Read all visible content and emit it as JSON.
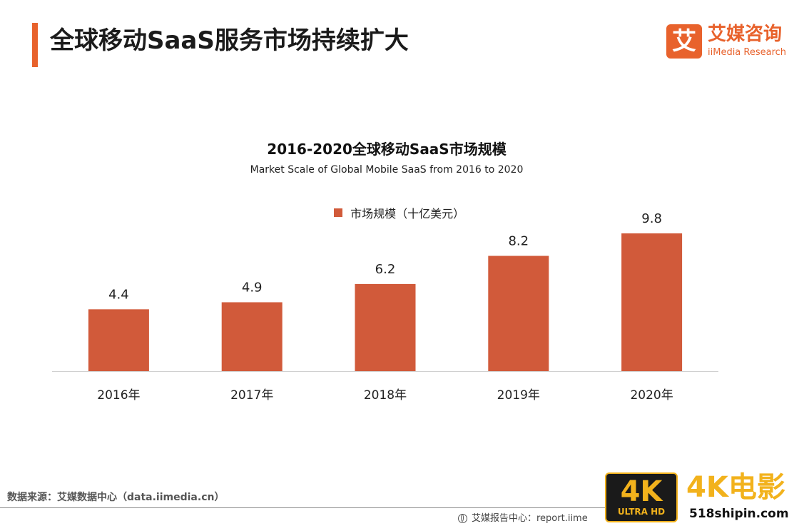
{
  "header": {
    "title": "全球移动SaaS服务市场持续扩大",
    "accent_color": "#e8622c"
  },
  "logo": {
    "mark": "艾",
    "name": "艾媒咨询",
    "sub": "iiMedia Research"
  },
  "chart_data": {
    "type": "bar",
    "title": "2016-2020全球移动SaaS市场规模",
    "subtitle": "Market Scale of Global Mobile SaaS from 2016 to 2020",
    "categories": [
      "2016年",
      "2017年",
      "2018年",
      "2019年",
      "2020年"
    ],
    "series": [
      {
        "name": "市场规模（十亿美元）",
        "values": [
          4.4,
          4.9,
          6.2,
          8.2,
          9.8
        ],
        "color": "#d15a3a"
      }
    ],
    "ylim": [
      0,
      11
    ],
    "legend_position": "top-center",
    "grid": false,
    "data_labels": true
  },
  "footer": {
    "source": "数据来源：艾媒数据中心（data.iimedia.cn）",
    "report_center": "艾媒报告中心：report.iime",
    "globe_icon": "globe-icon"
  },
  "watermark": {
    "badge_big": "4K",
    "badge_small": "ULTRA HD",
    "title": "4K电影",
    "url": "518shipin.com"
  }
}
